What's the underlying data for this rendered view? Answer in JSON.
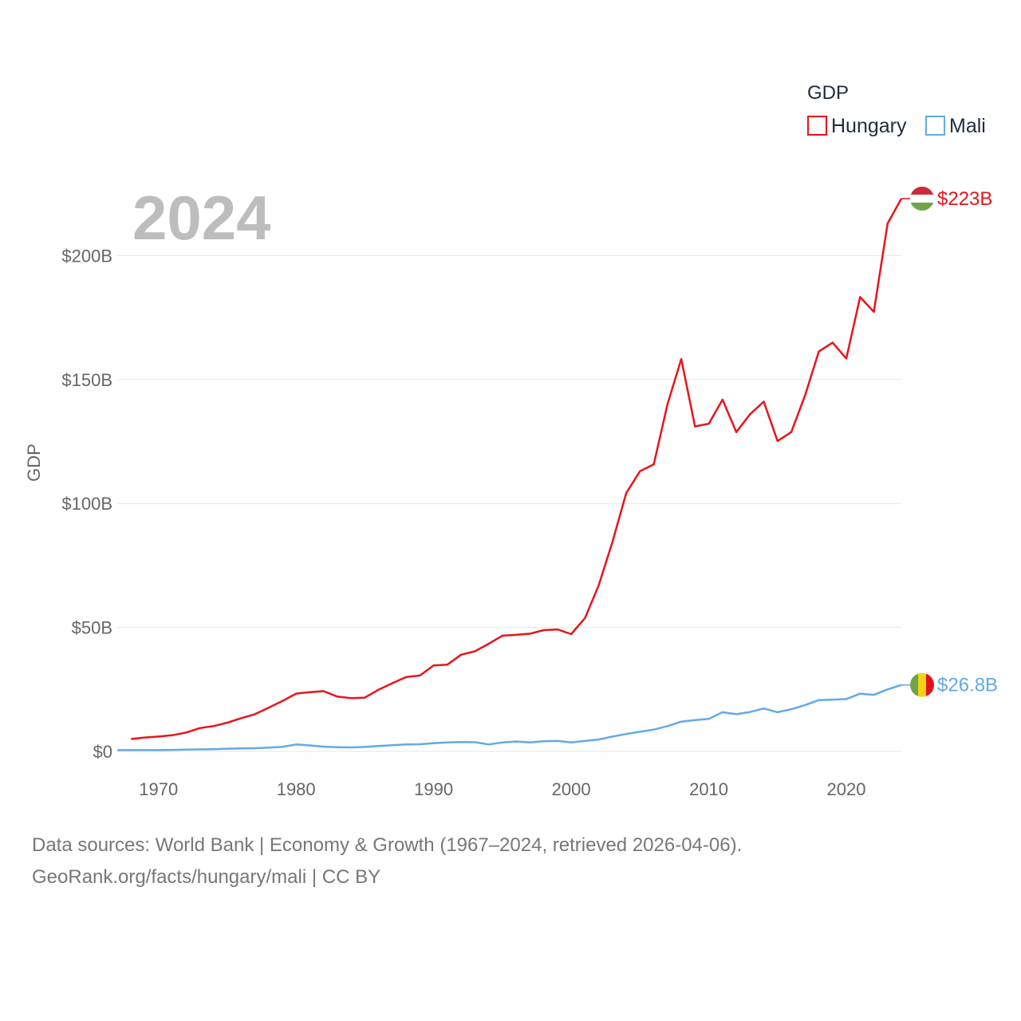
{
  "chart_data": {
    "type": "line",
    "title": "GDP",
    "ylabel": "GDP",
    "xlabel": "",
    "year_label": "2024",
    "x": [
      1967,
      1968,
      1969,
      1970,
      1971,
      1972,
      1973,
      1974,
      1975,
      1976,
      1977,
      1978,
      1979,
      1980,
      1981,
      1982,
      1983,
      1984,
      1985,
      1986,
      1987,
      1988,
      1989,
      1990,
      1991,
      1992,
      1993,
      1994,
      1995,
      1996,
      1997,
      1998,
      1999,
      2000,
      2001,
      2002,
      2003,
      2004,
      2005,
      2006,
      2007,
      2008,
      2009,
      2010,
      2011,
      2012,
      2013,
      2014,
      2015,
      2016,
      2017,
      2018,
      2019,
      2020,
      2021,
      2022,
      2023,
      2024
    ],
    "xlim": [
      1967,
      2024
    ],
    "ylim": [
      0,
      223
    ],
    "x_ticks": [
      1970,
      1980,
      1990,
      2000,
      2010,
      2020
    ],
    "y_ticks": [
      {
        "value": 0,
        "label": "$0"
      },
      {
        "value": 50,
        "label": "$50B"
      },
      {
        "value": 100,
        "label": "$100B"
      },
      {
        "value": 150,
        "label": "$150B"
      },
      {
        "value": 200,
        "label": "$200B"
      }
    ],
    "series": [
      {
        "name": "Hungary",
        "color": "#e8141b",
        "end_label": "$223B",
        "values": [
          null,
          5.0,
          5.6,
          6.0,
          6.5,
          7.6,
          9.4,
          10.2,
          11.6,
          13.4,
          15.0,
          17.6,
          20.3,
          23.3,
          23.9,
          24.3,
          22.1,
          21.5,
          21.7,
          24.9,
          27.5,
          30.0,
          30.6,
          34.7,
          35.0,
          39.0,
          40.4,
          43.4,
          46.7,
          47.0,
          47.5,
          48.9,
          49.2,
          47.3,
          53.8,
          67.0,
          84.5,
          104.2,
          113.0,
          115.8,
          140.0,
          158.3,
          131.1,
          132.2,
          141.9,
          128.8,
          136.0,
          141.1,
          125.2,
          128.8,
          143.6,
          161.3,
          164.9,
          158.5,
          183.3,
          177.3,
          213.0,
          223.0
        ]
      },
      {
        "name": "Mali",
        "color": "#63a9e8",
        "end_label": "$26.8B",
        "values": [
          0.5,
          0.5,
          0.5,
          0.5,
          0.6,
          0.7,
          0.8,
          0.9,
          1.1,
          1.2,
          1.3,
          1.5,
          1.8,
          2.8,
          2.4,
          1.9,
          1.7,
          1.6,
          1.8,
          2.2,
          2.5,
          2.8,
          2.9,
          3.3,
          3.6,
          3.8,
          3.7,
          2.8,
          3.6,
          4.0,
          3.6,
          4.1,
          4.2,
          3.6,
          4.2,
          4.8,
          6.0,
          7.0,
          7.9,
          8.8,
          10.2,
          12.0,
          12.6,
          13.1,
          15.8,
          15.0,
          15.9,
          17.3,
          15.8,
          17.0,
          18.7,
          20.7,
          20.9,
          21.1,
          23.3,
          22.8,
          25.0,
          26.8
        ]
      }
    ],
    "legend": {
      "title": "GDP",
      "position": "top-right"
    },
    "annotations": [
      {
        "series": "Hungary",
        "flag_icon": "hungary-flag-icon"
      },
      {
        "series": "Mali",
        "flag_icon": "mali-flag-icon"
      }
    ]
  },
  "footer": {
    "line1": "Data sources: World Bank | Economy & Growth (1967–2024, retrieved 2026-04-06).",
    "line2": "GeoRank.org/facts/hungary/mali | CC BY"
  }
}
